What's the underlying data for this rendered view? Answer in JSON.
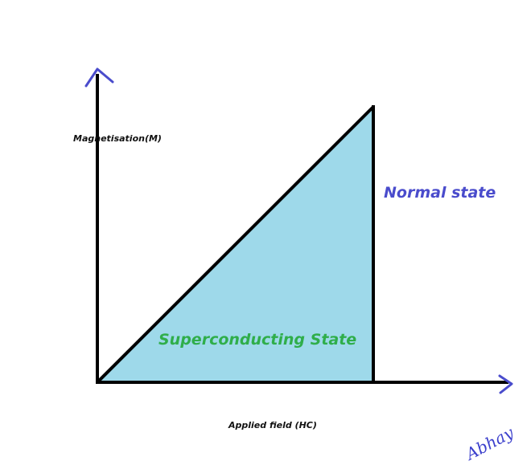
{
  "diagram": {
    "y_axis_label": "Magnetisation(M)",
    "x_axis_label": "Applied field (HC)",
    "superconducting_label": "Superconducting State",
    "normal_label": "Normal state",
    "signature": "Abhay"
  },
  "colors": {
    "axis": "#000000",
    "region_fill": "#9ed9ea",
    "superconducting_text": "#2fae4a",
    "normal_text": "#4a4ccc",
    "arrowheads": "#4a4ccc",
    "signature": "#3b3fcc"
  }
}
